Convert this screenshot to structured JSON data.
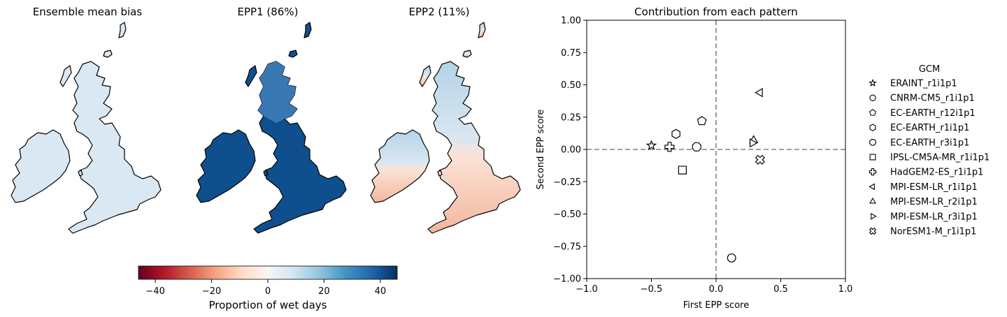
{
  "maps": {
    "titles": [
      "Ensemble mean bias",
      "EPP1 (86%)",
      "EPP2 (11%)"
    ],
    "colorbar": {
      "label": "Proportion of wet days",
      "ticks": [
        "−40",
        "−20",
        "0",
        "20",
        "40"
      ],
      "tick_values": [
        -40,
        -20,
        0,
        20,
        40
      ],
      "range": [
        -46,
        46
      ],
      "colormap": "RdBu",
      "colors": [
        "#67001f",
        "#b2182b",
        "#d6604d",
        "#f4a582",
        "#fddbc7",
        "#f7f7f7",
        "#d1e5f0",
        "#92c5de",
        "#4393c3",
        "#2166ac",
        "#053061"
      ]
    },
    "panel_colors": {
      "ensemble_mean_bias": {
        "britain": "#d9e8f3",
        "ireland": "#e6eff7",
        "north_scotland": "#d2e4f1"
      },
      "epp1": {
        "britain": "#0f4f8d",
        "ireland": "#154f8c",
        "north_scotland": "#2b6aa8"
      },
      "epp2": {
        "south_england": "#f6c2a6",
        "north": "#b5d3e8",
        "ireland": "#eaf1f7",
        "wales": "#f4b59b"
      }
    }
  },
  "chart_data": {
    "type": "scatter",
    "title": "Contribution from each pattern",
    "xlabel": "First EPP score",
    "ylabel": "Second EPP score",
    "xlim": [
      -1.0,
      1.0
    ],
    "ylim": [
      -1.0,
      1.0
    ],
    "xticks": [
      -1.0,
      -0.5,
      0.0,
      0.5,
      1.0
    ],
    "xtick_labels": [
      "−1.0",
      "−0.5",
      "0.0",
      "0.5",
      "1.0"
    ],
    "yticks": [
      1.0,
      0.75,
      0.5,
      0.25,
      0.0,
      -0.25,
      -0.5,
      -0.75,
      -1.0
    ],
    "ytick_labels": [
      "1.00",
      "0.75",
      "0.50",
      "0.25",
      "0.00",
      "−0.25",
      "−0.50",
      "−0.75",
      "−1.00"
    ],
    "reference_lines": {
      "x": 0,
      "y": 0,
      "style": "dashed"
    },
    "legend": {
      "title": "GCM",
      "placement": "right, outside"
    },
    "points": [
      {
        "name": "ERAINT_r1i1p1",
        "marker": "star",
        "x": -0.5,
        "y": 0.03
      },
      {
        "name": "CNRM-CM5_r1i1p1",
        "marker": "circle",
        "x": 0.12,
        "y": -0.84
      },
      {
        "name": "EC-EARTH_r12i1p1",
        "marker": "pentagon",
        "x": -0.11,
        "y": 0.22
      },
      {
        "name": "EC-EARTH_r1i1p1",
        "marker": "hexagon",
        "x": -0.31,
        "y": 0.12
      },
      {
        "name": "EC-EARTH_r3i1p1",
        "marker": "octagon",
        "x": -0.15,
        "y": 0.02
      },
      {
        "name": "IPSL-CM5A-MR_r1i1p1",
        "marker": "square",
        "x": -0.26,
        "y": -0.16
      },
      {
        "name": "HadGEM2-ES_r1i1p1",
        "marker": "plus",
        "x": -0.36,
        "y": 0.02
      },
      {
        "name": "MPI-ESM-LR_r1i1p1",
        "marker": "triangle-left",
        "x": 0.34,
        "y": 0.44
      },
      {
        "name": "MPI-ESM-LR_r2i1p1",
        "marker": "triangle-up",
        "x": 0.29,
        "y": 0.07
      },
      {
        "name": "MPI-ESM-LR_r3i1p1",
        "marker": "triangle-right",
        "x": 0.28,
        "y": 0.05
      },
      {
        "name": "NorESM1-M_r1i1p1",
        "marker": "x-filled",
        "x": 0.34,
        "y": -0.08
      }
    ]
  }
}
